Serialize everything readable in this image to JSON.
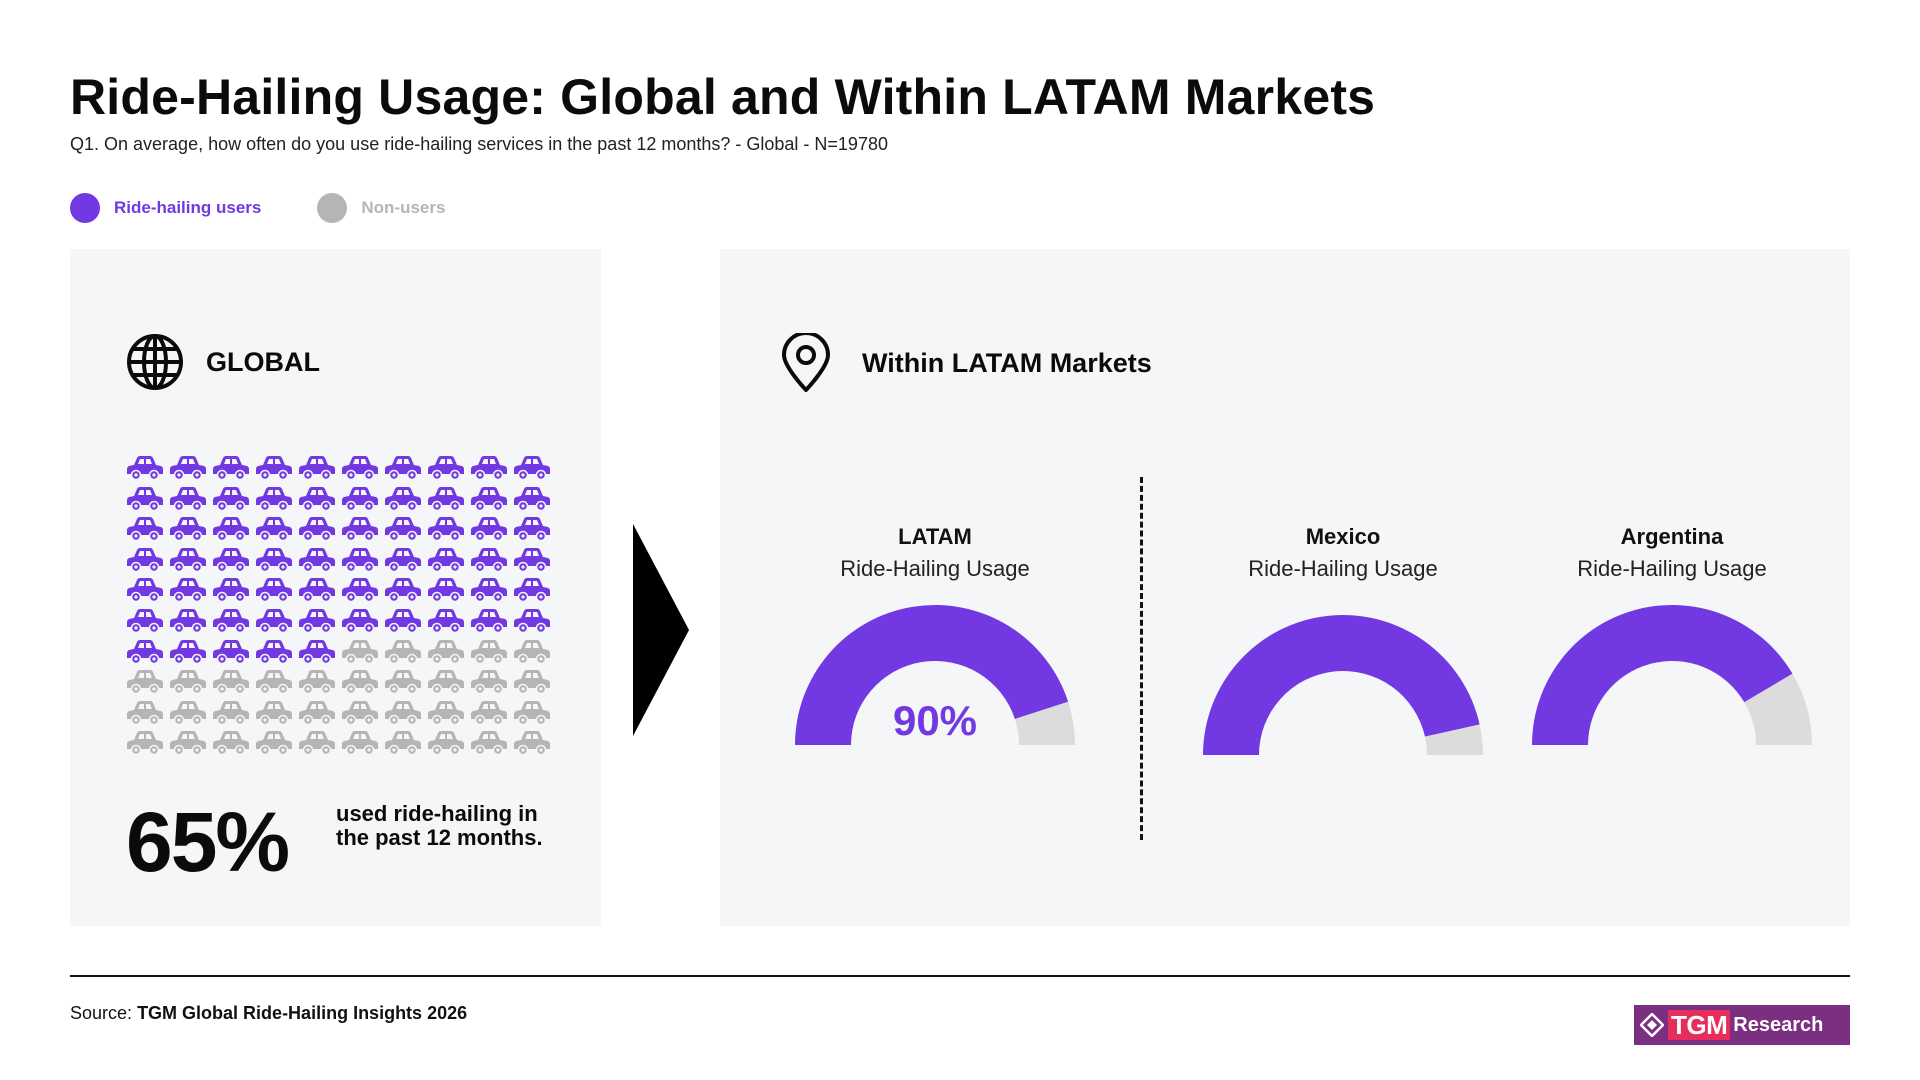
{
  "header": {
    "title": "Ride-Hailing Usage: Global and Within LATAM Markets",
    "subtitle": "Q1. On average, how often do you use ride-hailing services in the past 12 months? - Global - N=19780"
  },
  "legend": [
    {
      "label": "Ride-hailing users",
      "color": "#7239e2"
    },
    {
      "label": "Non-users",
      "color": "#b5b5b5"
    }
  ],
  "global_panel": {
    "heading": "GLOBAL",
    "icon": "globe-icon",
    "headline_value": "65%",
    "headline_text": "used ride-hailing in the past 12 months."
  },
  "latam_panel": {
    "heading": "Within LATAM Markets",
    "icon": "map-pin-icon"
  },
  "chart_data": [
    {
      "type": "waffle",
      "categories": [
        "Ride-hailing users",
        "Non-users"
      ],
      "values": [
        65,
        35
      ],
      "total_icons": 100,
      "icon": "car-icon",
      "colors": [
        "#7239e2",
        "#b5b5b5"
      ]
    },
    {
      "type": "gauge",
      "title": "LATAM",
      "subtitle": "Ride-Hailing Usage",
      "value": 90,
      "value_label": "90%",
      "max": 100,
      "colors": [
        "#7239e2",
        "#dcdcdc"
      ]
    },
    {
      "type": "gauge",
      "title": "Mexico",
      "subtitle": "Ride-Hailing Usage",
      "value": 93,
      "max": 100,
      "colors": [
        "#7239e2",
        "#dcdcdc"
      ]
    },
    {
      "type": "gauge",
      "title": "Argentina",
      "subtitle": "Ride-Hailing Usage",
      "value": 83,
      "max": 100,
      "colors": [
        "#7239e2",
        "#dcdcdc"
      ]
    }
  ],
  "footer": {
    "source_prefix": "Source:",
    "source_name": "TGM Global Ride-Hailing Insights 2026",
    "brand_tgm": "TGM",
    "brand_research": "Research"
  }
}
